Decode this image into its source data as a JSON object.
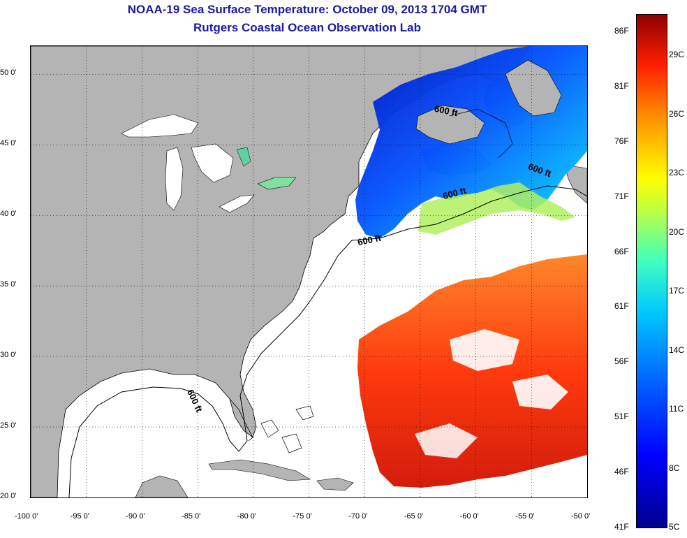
{
  "header": {
    "title": "NOAA-19 Sea Surface Temperature:  October 09, 2013 1704 GMT",
    "subtitle": "Rutgers Coastal Ocean Observation Lab"
  },
  "map": {
    "lon_range": [
      -100,
      -50
    ],
    "lat_range": [
      20,
      52
    ],
    "lon_ticks": [
      "-100 0'",
      "-95 0'",
      "-90 0'",
      "-85 0'",
      "-80 0'",
      "-75 0'",
      "-70 0'",
      "-65 0'",
      "-60 0'",
      "-55 0'",
      "-50 0'"
    ],
    "lat_ticks": [
      "20 0'",
      "25 0'",
      "30 0'",
      "35 0'",
      "40 0'",
      "45 0'",
      "50 0'"
    ],
    "contour_label": "600 ft",
    "colors": {
      "land": "#b4b4b4",
      "no_data": "#ffffff",
      "cold": "#0000cc",
      "warm": "#cc1a00"
    }
  },
  "colorbar": {
    "fahrenheit": [
      "86F",
      "81F",
      "76F",
      "71F",
      "66F",
      "61F",
      "56F",
      "51F",
      "46F",
      "41F"
    ],
    "celsius": [
      "29C",
      "26C",
      "23C",
      "20C",
      "17C",
      "14C",
      "11C",
      "8C",
      "5C"
    ]
  }
}
